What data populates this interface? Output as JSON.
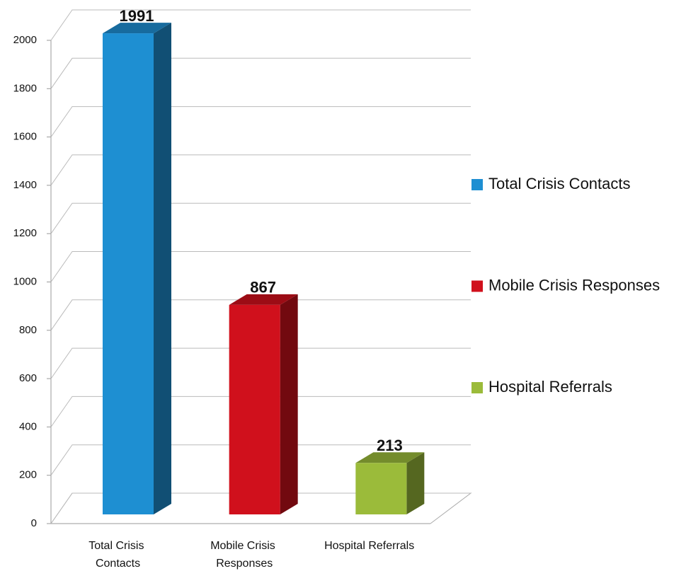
{
  "chart_data": {
    "type": "bar3d",
    "categories": [
      "Total Crisis Contacts",
      "Mobile Crisis Responses",
      "Hospital Referrals"
    ],
    "values": [
      1991,
      867,
      213
    ],
    "colors": [
      "#1e8fd2",
      "#d0101c",
      "#9bbb3a"
    ],
    "ylim": [
      0,
      2000
    ],
    "yticks": [
      0,
      200,
      400,
      600,
      800,
      1000,
      1200,
      1400,
      1600,
      1800,
      2000
    ],
    "grid": true,
    "legend": "right"
  }
}
